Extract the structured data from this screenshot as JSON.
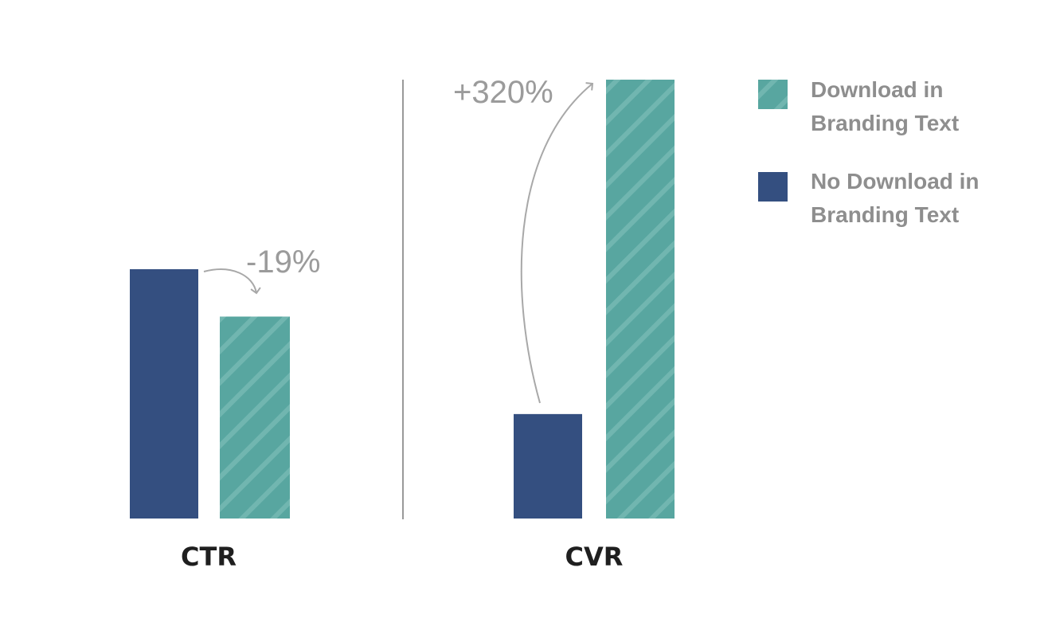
{
  "colors": {
    "download": "#58a6a0",
    "download_stripe": "#71b6b0",
    "no_download": "#344f80",
    "divider": "#9a9a9a",
    "annotation": "#a8a8a8"
  },
  "chart_data": {
    "type": "bar",
    "categories": [
      "CTR",
      "CVR"
    ],
    "series": [
      {
        "name": "No Download in Branding Text",
        "values": [
          1.0,
          0.238
        ]
      },
      {
        "name": "Download in Branding Text",
        "values": [
          0.81,
          1.0
        ]
      }
    ],
    "legend": {
      "position": "top-right",
      "entries": [
        {
          "lines": [
            "Download in",
            "Branding Text"
          ],
          "series": "Download in Branding Text"
        },
        {
          "lines": [
            "No Download in",
            "Branding Text"
          ],
          "series": "No Download in Branding Text"
        }
      ]
    },
    "annotations": [
      {
        "category": "CTR",
        "text": "-19%"
      },
      {
        "category": "CVR",
        "text": "+320%"
      }
    ],
    "grid": false,
    "axes_visible": false
  }
}
